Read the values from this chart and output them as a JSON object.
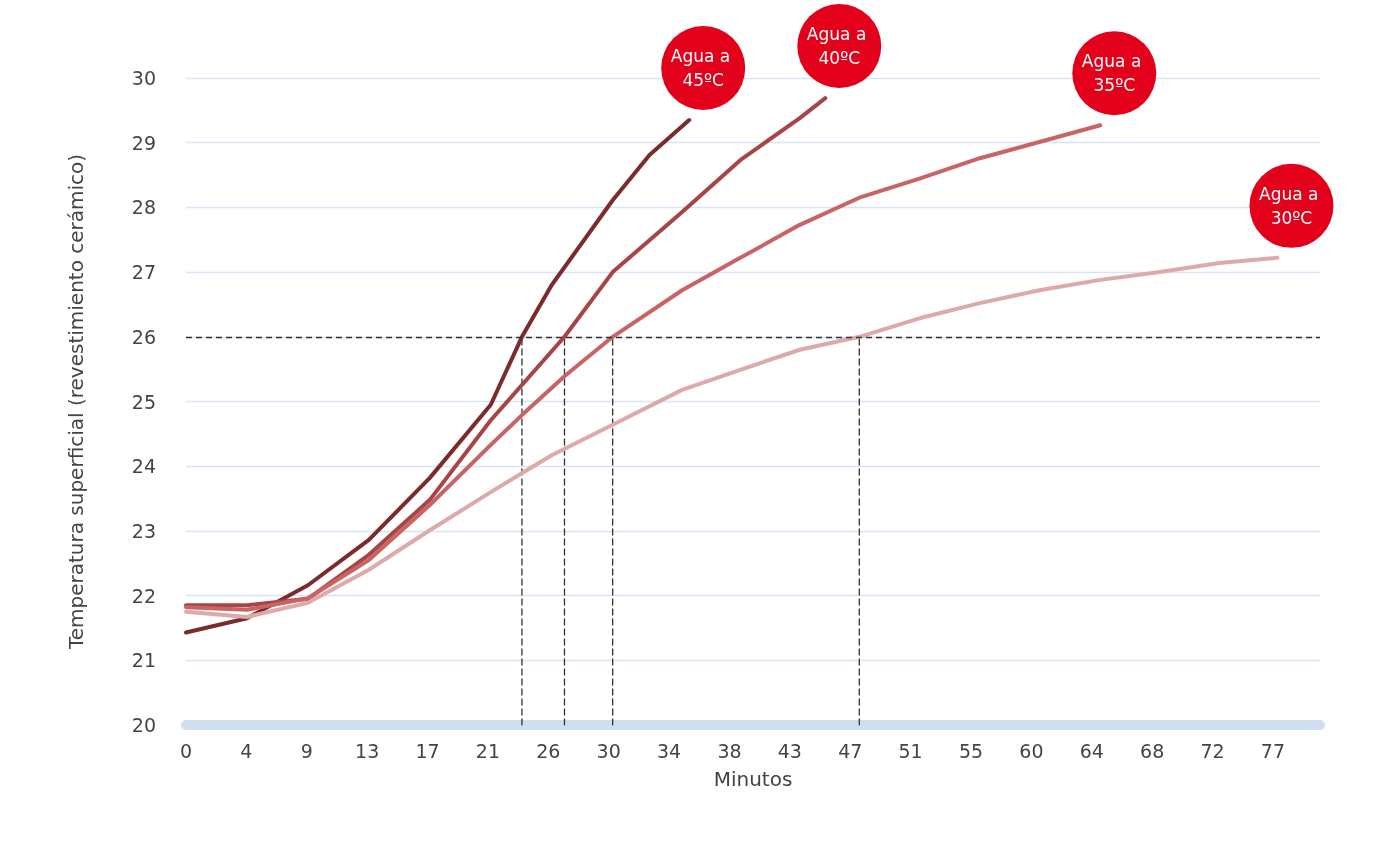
{
  "chart_data": {
    "type": "line",
    "xlabel": "Minutos",
    "ylabel": "Temperatura superficial (revestimiento cerámico)",
    "xlim": [
      0,
      80
    ],
    "xticks": [
      0,
      {
        "value": 4.26,
        "label": "4"
      },
      {
        "value": 8.52,
        "label": "9"
      },
      {
        "value": 12.78,
        "label": "13"
      },
      {
        "value": 17.04,
        "label": "17"
      },
      {
        "value": 21.3,
        "label": "21"
      },
      {
        "value": 25.56,
        "label": "26"
      },
      {
        "value": 29.82,
        "label": "30"
      },
      {
        "value": 34.08,
        "label": "34"
      },
      {
        "value": 38.34,
        "label": "38"
      },
      {
        "value": 42.6,
        "label": "43"
      },
      {
        "value": 46.86,
        "label": "47"
      },
      {
        "value": 51.12,
        "label": "51"
      },
      {
        "value": 55.38,
        "label": "55"
      },
      {
        "value": 59.64,
        "label": "60"
      },
      {
        "value": 63.9,
        "label": "64"
      },
      {
        "value": 68.16,
        "label": "68"
      },
      {
        "value": 72.42,
        "label": "72"
      },
      {
        "value": 76.68,
        "label": "77"
      }
    ],
    "ylim": [
      20,
      30
    ],
    "yticks": [
      20,
      21,
      22,
      23,
      24,
      25,
      26,
      27,
      28,
      29,
      30
    ],
    "grid": "y",
    "legend": false,
    "marker": "none",
    "line_style": "solid",
    "ref_lines": [
      {
        "axis": "y",
        "value": 26,
        "color": "#333333",
        "line_style": "dashed"
      }
    ],
    "series": [
      {
        "name": "Agua a 45ºC",
        "color": "#7b2b2b",
        "x": [
          0,
          4.3,
          8.6,
          12.9,
          17.2,
          21.5,
          23.7,
          25.8,
          30.1,
          32.7,
          35.5
        ],
        "values": [
          21.43,
          21.65,
          22.16,
          22.86,
          23.82,
          24.95,
          26.0,
          26.8,
          28.11,
          28.81,
          29.35
        ]
      },
      {
        "name": "Agua a 40ºC",
        "color": "#a94444",
        "x": [
          0,
          4.3,
          8.6,
          12.9,
          17.2,
          21.5,
          26.7,
          30.1,
          35.0,
          39.1,
          43.3,
          45.1
        ],
        "values": [
          21.85,
          21.85,
          21.95,
          22.63,
          23.48,
          24.71,
          26.0,
          27.0,
          27.93,
          28.73,
          29.38,
          29.69
        ]
      },
      {
        "name": "Agua a 35ºC",
        "color": "#c96464",
        "x": [
          0,
          4.3,
          8.6,
          12.9,
          17.2,
          21.5,
          23.7,
          26.7,
          30.1,
          35.0,
          39.1,
          43.3,
          47.5,
          51.8,
          56.0,
          60.2,
          64.5
        ],
        "values": [
          21.82,
          21.78,
          21.96,
          22.55,
          23.4,
          24.33,
          24.79,
          25.39,
          26.0,
          26.72,
          27.22,
          27.73,
          28.15,
          28.45,
          28.76,
          29.01,
          29.27
        ]
      },
      {
        "name": "Agua a 30ºC",
        "color": "#dda9a9",
        "x": [
          0,
          4.3,
          8.6,
          12.9,
          17.2,
          21.5,
          25.8,
          30.1,
          35.0,
          39.1,
          43.3,
          47.5,
          51.8,
          56.0,
          60.2,
          64.5,
          68.7,
          72.9,
          77
        ],
        "values": [
          21.75,
          21.67,
          21.89,
          22.4,
          23.01,
          23.6,
          24.17,
          24.64,
          25.18,
          25.49,
          25.8,
          26.0,
          26.29,
          26.52,
          26.72,
          26.88,
          27.0,
          27.14,
          27.22
        ]
      },
      {
        "color": "#333333",
        "line_style": "dashed",
        "x": [
          23.7,
          23.7
        ],
        "values": [
          20,
          26
        ]
      },
      {
        "color": "#333333",
        "line_style": "dashed",
        "x": [
          26.7,
          26.7
        ],
        "values": [
          20,
          26
        ]
      },
      {
        "color": "#333333",
        "line_style": "dashed",
        "x": [
          30.1,
          30.1
        ],
        "values": [
          20,
          26
        ]
      },
      {
        "color": "#333333",
        "line_style": "dashed",
        "x": [
          47.5,
          47.5
        ],
        "values": [
          20,
          26
        ]
      }
    ]
  }
}
